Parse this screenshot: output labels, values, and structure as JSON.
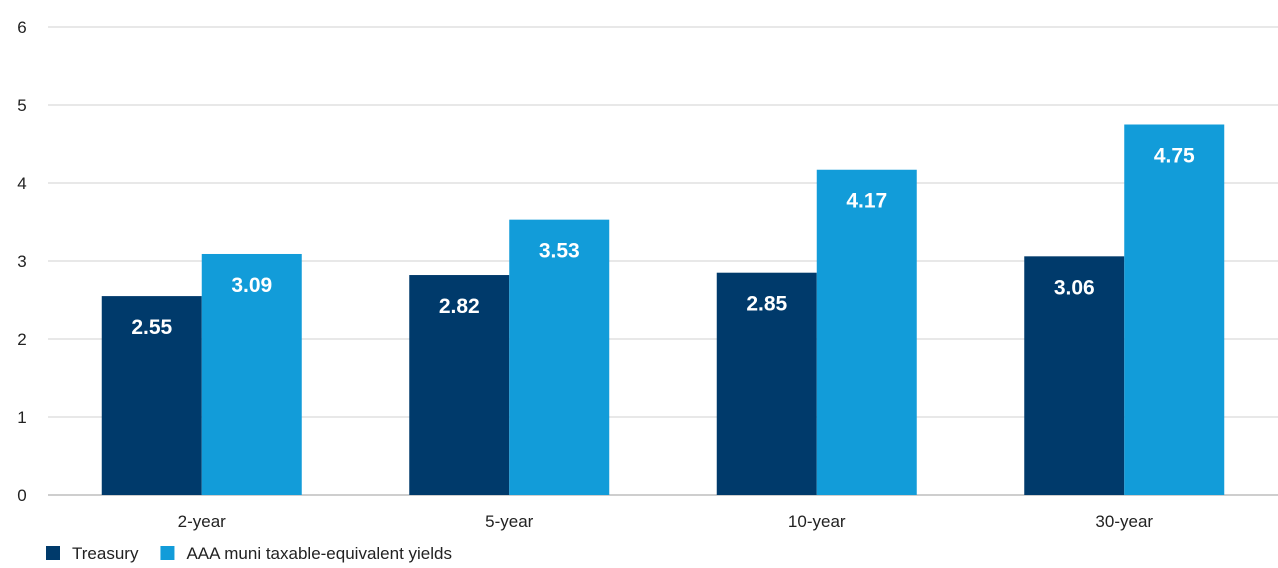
{
  "chart_data": {
    "type": "bar",
    "title": "",
    "xlabel": "",
    "ylabel": "",
    "categories": [
      "2-year",
      "5-year",
      "10-year",
      "30-year"
    ],
    "series": [
      {
        "name": "Treasury",
        "values": [
          2.55,
          2.82,
          2.85,
          3.06
        ],
        "color": "#003a6b"
      },
      {
        "name": "AAA muni taxable-equivalent yields",
        "values": [
          3.09,
          3.53,
          4.17,
          4.75
        ],
        "color": "#129cd9"
      }
    ],
    "ylim": [
      0,
      6
    ],
    "yticks": [
      "0",
      "1",
      "2",
      "3",
      "4",
      "5",
      "6"
    ],
    "data_labels": [
      [
        "2.55",
        "2.82",
        "2.85",
        "3.06"
      ],
      [
        "3.09",
        "3.53",
        "4.17",
        "4.75"
      ]
    ],
    "grid": true,
    "legend_position": "bottom-left"
  }
}
